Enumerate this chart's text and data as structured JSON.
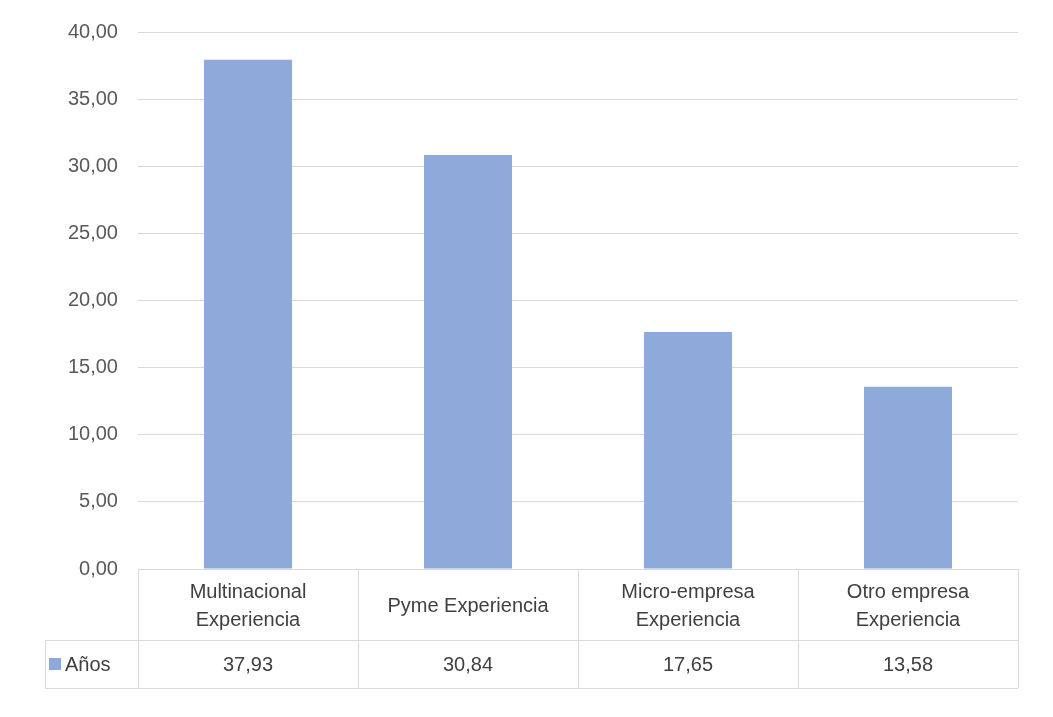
{
  "chart_data": {
    "type": "bar",
    "categories": [
      "Multinacional Experiencia",
      "Pyme Experiencia",
      "Micro-empresa Experiencia",
      "Otro empresa Experiencia"
    ],
    "series": [
      {
        "name": "Años",
        "color": "#8eaadb",
        "values": [
          37.93,
          30.84,
          17.65,
          13.58
        ],
        "value_labels": [
          "37,93",
          "30,84",
          "17,65",
          "13,58"
        ]
      }
    ],
    "ylim": [
      0,
      40
    ],
    "yticks": [
      {
        "value": 0,
        "label": "0,00"
      },
      {
        "value": 5,
        "label": "5,00"
      },
      {
        "value": 10,
        "label": "10,00"
      },
      {
        "value": 15,
        "label": "15,00"
      },
      {
        "value": 20,
        "label": "20,00"
      },
      {
        "value": 25,
        "label": "25,00"
      },
      {
        "value": 30,
        "label": "30,00"
      },
      {
        "value": 35,
        "label": "35,00"
      },
      {
        "value": 40,
        "label": "40,00"
      }
    ],
    "grid": "y",
    "legend": "bottom"
  }
}
